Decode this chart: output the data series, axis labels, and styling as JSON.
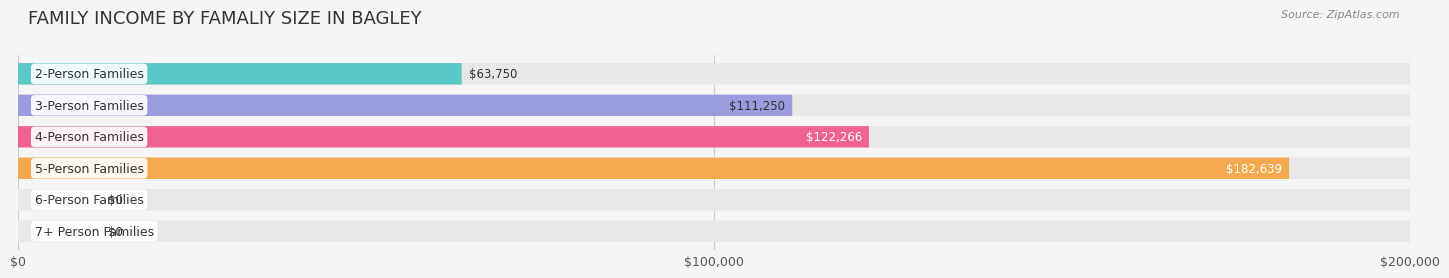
{
  "title": "FAMILY INCOME BY FAMALIY SIZE IN BAGLEY",
  "source": "Source: ZipAtlas.com",
  "categories": [
    "2-Person Families",
    "3-Person Families",
    "4-Person Families",
    "5-Person Families",
    "6-Person Families",
    "7+ Person Families"
  ],
  "values": [
    63750,
    111250,
    122266,
    182639,
    0,
    0
  ],
  "bar_colors": [
    "#5BC8C8",
    "#9B9BE0",
    "#F06292",
    "#F5A94E",
    "#F48FB1",
    "#90CAF9"
  ],
  "label_colors": [
    "#333333",
    "#333333",
    "#ffffff",
    "#ffffff",
    "#333333",
    "#333333"
  ],
  "value_labels": [
    "$63,750",
    "$111,250",
    "$122,266",
    "$182,639",
    "$0",
    "$0"
  ],
  "xlim": [
    0,
    200000
  ],
  "xticks": [
    0,
    100000,
    200000
  ],
  "xtick_labels": [
    "$0",
    "$100,000",
    "$200,000"
  ],
  "background_color": "#f5f5f5",
  "bar_bg_color": "#e8e8e8",
  "title_fontsize": 13,
  "label_fontsize": 9,
  "value_fontsize": 8.5,
  "source_fontsize": 8
}
